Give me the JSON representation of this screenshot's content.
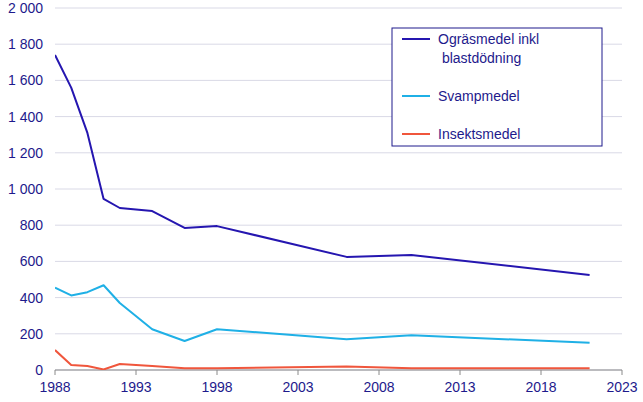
{
  "chart_data": {
    "type": "line",
    "x": [
      1988,
      1989,
      1990,
      1991,
      1992,
      1994,
      1996,
      1998,
      2006,
      2010,
      2021
    ],
    "series": [
      {
        "name": "Ogräsmedel inkl blastdödning",
        "color": "#2516b0",
        "values": [
          1740,
          1560,
          1310,
          945,
          895,
          878,
          785,
          795,
          625,
          635,
          525
        ]
      },
      {
        "name": "Svampmedel",
        "color": "#1fb0e6",
        "values": [
          455,
          412,
          430,
          468,
          370,
          225,
          160,
          225,
          170,
          192,
          150
        ]
      },
      {
        "name": "Insektsmedel",
        "color": "#f0563c",
        "values": [
          110,
          28,
          22,
          3,
          33,
          22,
          10,
          10,
          20,
          10,
          10
        ]
      }
    ],
    "xlim": [
      1988,
      2023
    ],
    "xticks": [
      1988,
      1993,
      1998,
      2003,
      2008,
      2013,
      2018,
      2023
    ],
    "ylim": [
      0,
      2000
    ],
    "yticks": [
      0,
      200,
      400,
      600,
      800,
      {
        "value": 1000,
        "label": "1 000"
      },
      {
        "value": 1200,
        "label": "1 200"
      },
      {
        "value": 1400,
        "label": "1 400"
      },
      {
        "value": 1600,
        "label": "1 600"
      },
      {
        "value": 1800,
        "label": "1 800"
      },
      {
        "value": 2000,
        "label": "2 000"
      }
    ],
    "grid": true,
    "legend": "top-right"
  }
}
